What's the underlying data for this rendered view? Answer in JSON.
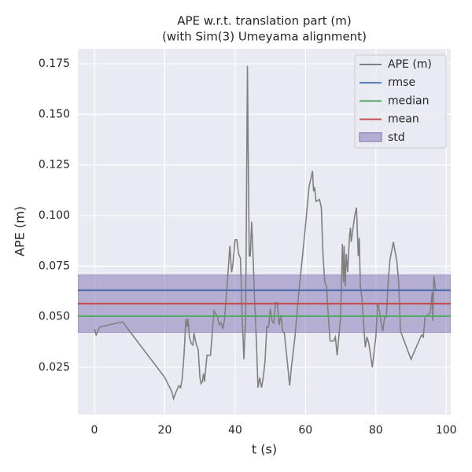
{
  "chart_data": {
    "type": "line",
    "title": [
      "APE w.r.t. translation part (m)",
      "(with Sim(3) Umeyama alignment)"
    ],
    "xlabel": "t (s)",
    "ylabel": "APE (m)",
    "xlim": [
      -4.7,
      101.3
    ],
    "ylim": [
      0.0017,
      0.1824
    ],
    "xticks": [
      0,
      20,
      40,
      60,
      80,
      100
    ],
    "yticks": [
      0.025,
      {
        "value": 0.05,
        "label": "0.050"
      },
      0.075,
      {
        "value": 0.1,
        "label": "0.100"
      },
      0.125,
      {
        "value": 0.15,
        "label": "0.150"
      },
      0.175
    ],
    "grid": true,
    "legend": "upper right",
    "series": [
      {
        "name": "APE (m)",
        "color": "#808080",
        "x": [
          0,
          0.5,
          1.5,
          8,
          20,
          22,
          22.5,
          23,
          24,
          24.5,
          25,
          25.5,
          26,
          26.3,
          26.6,
          27,
          27.5,
          28,
          28.3,
          29,
          29.5,
          30,
          30.3,
          30.7,
          31,
          31.3,
          32,
          33,
          34,
          35,
          35.5,
          36,
          36.5,
          37,
          38,
          38.5,
          39,
          39.3,
          40,
          40.5,
          41,
          41.5,
          42,
          42.5,
          43,
          43.5,
          44,
          44.3,
          44.7,
          45,
          45.5,
          46,
          46.5,
          47,
          47.5,
          48,
          48.5,
          49,
          49.5,
          50,
          50.5,
          51,
          51.5,
          52,
          52.5,
          53,
          53.5,
          54,
          55,
          55.5,
          56,
          57,
          58,
          60,
          61,
          62,
          62.3,
          62.6,
          63,
          64,
          64.5,
          65,
          65.5,
          66,
          66.5,
          67,
          68,
          68.5,
          69,
          70,
          70.5,
          70.8,
          71,
          71.3,
          71.6,
          72,
          72.5,
          72.8,
          73,
          74,
          74.5,
          75,
          75.3,
          75.6,
          76,
          77,
          77.5,
          78,
          79,
          80,
          80.5,
          81,
          81.5,
          82,
          82.5,
          83,
          83.5,
          84,
          85,
          86,
          86.5,
          87,
          90,
          93,
          93.5,
          94,
          95.5,
          96,
          96.2,
          96.5,
          97
        ],
        "values": [
          0.044,
          0.041,
          0.045,
          0.0475,
          0.02,
          0.013,
          0.0095,
          0.012,
          0.016,
          0.015,
          0.02,
          0.032,
          0.049,
          0.045,
          0.049,
          0.04,
          0.037,
          0.036,
          0.042,
          0.036,
          0.034,
          0.02,
          0.017,
          0.018,
          0.022,
          0.018,
          0.031,
          0.031,
          0.053,
          0.05,
          0.046,
          0.047,
          0.044,
          0.049,
          0.072,
          0.085,
          0.072,
          0.075,
          0.088,
          0.088,
          0.081,
          0.079,
          0.05,
          0.029,
          0.05,
          0.174,
          0.08,
          0.08,
          0.097,
          0.085,
          0.06,
          0.04,
          0.015,
          0.02,
          0.015,
          0.02,
          0.028,
          0.045,
          0.045,
          0.054,
          0.048,
          0.047,
          0.057,
          0.057,
          0.046,
          0.051,
          0.043,
          0.042,
          0.025,
          0.016,
          0.025,
          0.04,
          0.06,
          0.095,
          0.114,
          0.122,
          0.112,
          0.114,
          0.107,
          0.108,
          0.104,
          0.08,
          0.067,
          0.065,
          0.05,
          0.038,
          0.038,
          0.04,
          0.031,
          0.05,
          0.086,
          0.067,
          0.085,
          0.065,
          0.081,
          0.072,
          0.09,
          0.094,
          0.087,
          0.1,
          0.104,
          0.08,
          0.089,
          0.065,
          0.06,
          0.035,
          0.04,
          0.037,
          0.025,
          0.04,
          0.057,
          0.053,
          0.047,
          0.043,
          0.05,
          0.05,
          0.067,
          0.078,
          0.087,
          0.077,
          0.067,
          0.043,
          0.029,
          0.041,
          0.04,
          0.05,
          0.052,
          0.062,
          0.048,
          0.07,
          0.063
        ]
      }
    ],
    "stats": [
      {
        "name": "rmse",
        "color": "#4c72b0",
        "value": 0.0631
      },
      {
        "name": "median",
        "color": "#55a868",
        "value": 0.0503
      },
      {
        "name": "mean",
        "color": "#c44e52",
        "value": 0.0565
      }
    ],
    "std": {
      "name": "std",
      "color": "#8172b2",
      "value": 0.0142
    }
  }
}
